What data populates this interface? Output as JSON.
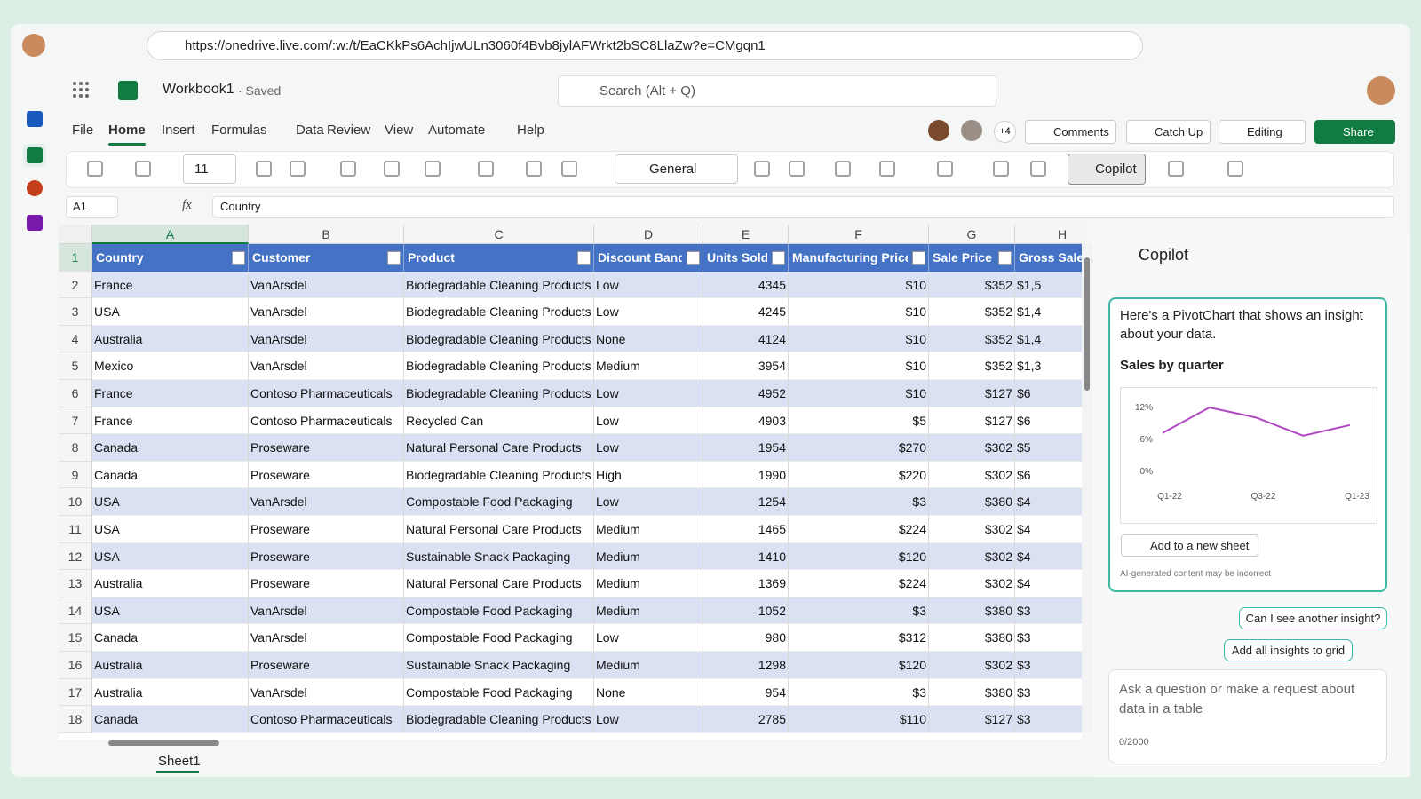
{
  "browser": {
    "url": "https://onedrive.live.com/:w:/t/EaCKkPs6AchIjwULn3060f4Bvb8jylAFWrkt2bSC8LlaZw?e=CMgqn1"
  },
  "app": {
    "file_name": "Workbook1",
    "status": "· Saved",
    "search": "Search (Alt + Q)"
  },
  "tabs": [
    "File",
    "Home",
    "Insert",
    "Formulas",
    "Data",
    "Review",
    "View",
    "Automate",
    "Help"
  ],
  "toolbar": {
    "collaborators": "+4",
    "comments": "Comments",
    "catch_up": "Catch Up",
    "editing": "Editing",
    "share": "Share"
  },
  "ribbon": {
    "font_size": "11",
    "number_format": "General",
    "copilot": "Copilot"
  },
  "formula_bar": {
    "cell": "A1",
    "fx": "fx",
    "content": "Country"
  },
  "sheet": {
    "column_letters": [
      "A",
      "B",
      "C",
      "D",
      "E",
      "F",
      "G",
      "H"
    ],
    "headers": [
      "Country",
      "Customer",
      "Product",
      "Discount Band",
      "Units Sold",
      "Manufacturing Price",
      "Sale Price",
      "Gross Sale"
    ],
    "row_numbers": [
      "1",
      "2",
      "3",
      "4",
      "5",
      "6",
      "7",
      "8",
      "9",
      "10",
      "11",
      "12",
      "13",
      "14",
      "15",
      "16",
      "17",
      "18"
    ],
    "rows": [
      [
        "France",
        "VanArsdel",
        "Biodegradable Cleaning Products",
        "Low",
        "4345",
        "$10",
        "$352",
        "$1,5"
      ],
      [
        "USA",
        "VanArsdel",
        "Biodegradable Cleaning Products",
        "Low",
        "4245",
        "$10",
        "$352",
        "$1,4"
      ],
      [
        "Australia",
        "VanArsdel",
        "Biodegradable Cleaning Products",
        "None",
        "4124",
        "$10",
        "$352",
        "$1,4"
      ],
      [
        "Mexico",
        "VanArsdel",
        "Biodegradable Cleaning Products",
        "Medium",
        "3954",
        "$10",
        "$352",
        "$1,3"
      ],
      [
        "France",
        "Contoso Pharmaceuticals",
        "Biodegradable Cleaning Products",
        "Low",
        "4952",
        "$10",
        "$127",
        "$6"
      ],
      [
        "France",
        "Contoso Pharmaceuticals",
        "Recycled Can",
        "Low",
        "4903",
        "$5",
        "$127",
        "$6"
      ],
      [
        "Canada",
        "Proseware",
        "Natural Personal Care Products",
        "Low",
        "1954",
        "$270",
        "$302",
        "$5"
      ],
      [
        "Canada",
        "Proseware",
        "Biodegradable Cleaning Products",
        "High",
        "1990",
        "$220",
        "$302",
        "$6"
      ],
      [
        "USA",
        "VanArsdel",
        "Compostable Food Packaging",
        "Low",
        "1254",
        "$3",
        "$380",
        "$4"
      ],
      [
        "USA",
        "Proseware",
        "Natural Personal Care Products",
        "Medium",
        "1465",
        "$224",
        "$302",
        "$4"
      ],
      [
        "USA",
        "Proseware",
        "Sustainable Snack Packaging",
        "Medium",
        "1410",
        "$120",
        "$302",
        "$4"
      ],
      [
        "Australia",
        "Proseware",
        "Natural Personal Care Products",
        "Medium",
        "1369",
        "$224",
        "$302",
        "$4"
      ],
      [
        "USA",
        "VanArsdel",
        "Compostable Food Packaging",
        "Medium",
        "1052",
        "$3",
        "$380",
        "$3"
      ],
      [
        "Canada",
        "VanArsdel",
        "Compostable Food Packaging",
        "Low",
        "980",
        "$312",
        "$380",
        "$3"
      ],
      [
        "Australia",
        "Proseware",
        "Sustainable Snack Packaging",
        "Medium",
        "1298",
        "$120",
        "$302",
        "$3"
      ],
      [
        "Australia",
        "VanArsdel",
        "Compostable Food Packaging",
        "None",
        "954",
        "$3",
        "$380",
        "$3"
      ],
      [
        "Canada",
        "Contoso Pharmaceuticals",
        "Biodegradable Cleaning Products",
        "Low",
        "2785",
        "$110",
        "$127",
        "$3"
      ]
    ],
    "tab": "Sheet1"
  },
  "copilot": {
    "title": "Copilot",
    "message": "Here's a PivotChart that shows an insight about your data.",
    "add_button": "Add to a new sheet",
    "disclaimer": "AI-generated content may be incorrect",
    "suggestions": [
      "Can I see another insight?",
      "Add all insights to grid"
    ],
    "input_placeholder": "Ask a question or make a request about data in a table",
    "counter": "0/2000"
  },
  "chart_data": {
    "type": "line",
    "title": "Sales by quarter",
    "categories": [
      "Q1-22",
      null,
      "Q3-22",
      null,
      "Q1-23"
    ],
    "values": [
      7.2,
      12,
      10.1,
      6.7,
      8.7
    ],
    "color": "#b146c2",
    "ylim": [
      0,
      13
    ],
    "yticks": [
      {
        "value": 0,
        "label": "0%"
      },
      {
        "value": 6,
        "label": "6%"
      },
      {
        "value": 12,
        "label": "12%"
      }
    ]
  }
}
